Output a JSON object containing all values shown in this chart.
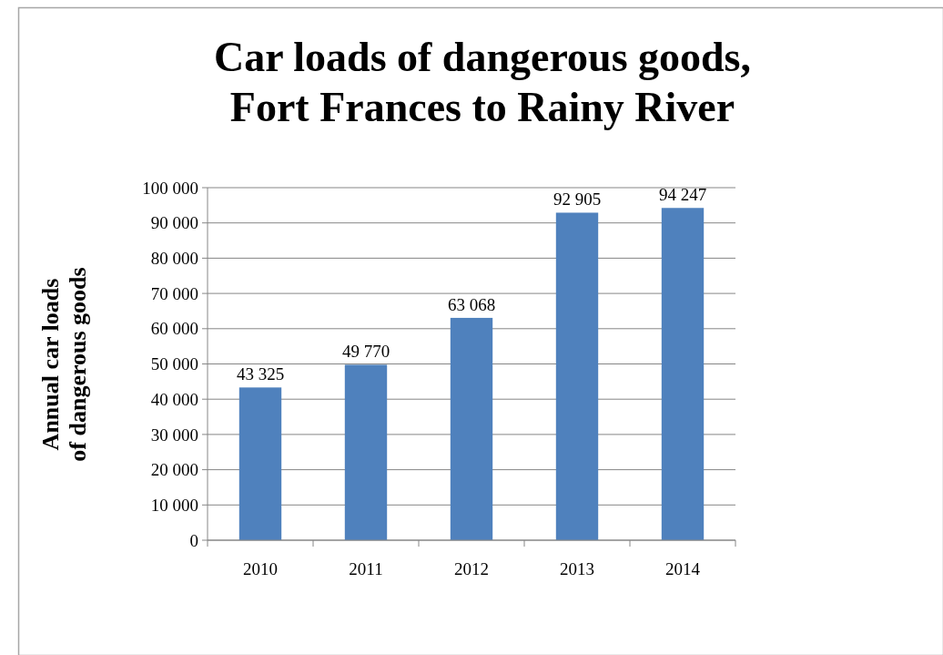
{
  "chart_data": {
    "type": "bar",
    "title": "Car loads of dangerous goods,\nFort Frances to Rainy River",
    "ylabel": "Annual car loads\nof dangerous goods",
    "categories": [
      "2010",
      "2011",
      "2012",
      "2013",
      "2014"
    ],
    "values": [
      43325,
      49770,
      63068,
      92905,
      94247
    ],
    "value_labels": [
      "43 325",
      "49 770",
      "63 068",
      "92 905",
      "94 247"
    ],
    "color": "#4f81bd",
    "ylim": [
      0,
      100000
    ],
    "yticks": [
      {
        "value": 0,
        "label": "0"
      },
      {
        "value": 10000,
        "label": "10 000"
      },
      {
        "value": 20000,
        "label": "20 000"
      },
      {
        "value": 30000,
        "label": "30 000"
      },
      {
        "value": 40000,
        "label": "40 000"
      },
      {
        "value": 50000,
        "label": "50 000"
      },
      {
        "value": 60000,
        "label": "60 000"
      },
      {
        "value": 70000,
        "label": "70 000"
      },
      {
        "value": 80000,
        "label": "80 000"
      },
      {
        "value": 90000,
        "label": "90 000"
      },
      {
        "value": 100000,
        "label": "100 000"
      }
    ],
    "grid": "y"
  }
}
